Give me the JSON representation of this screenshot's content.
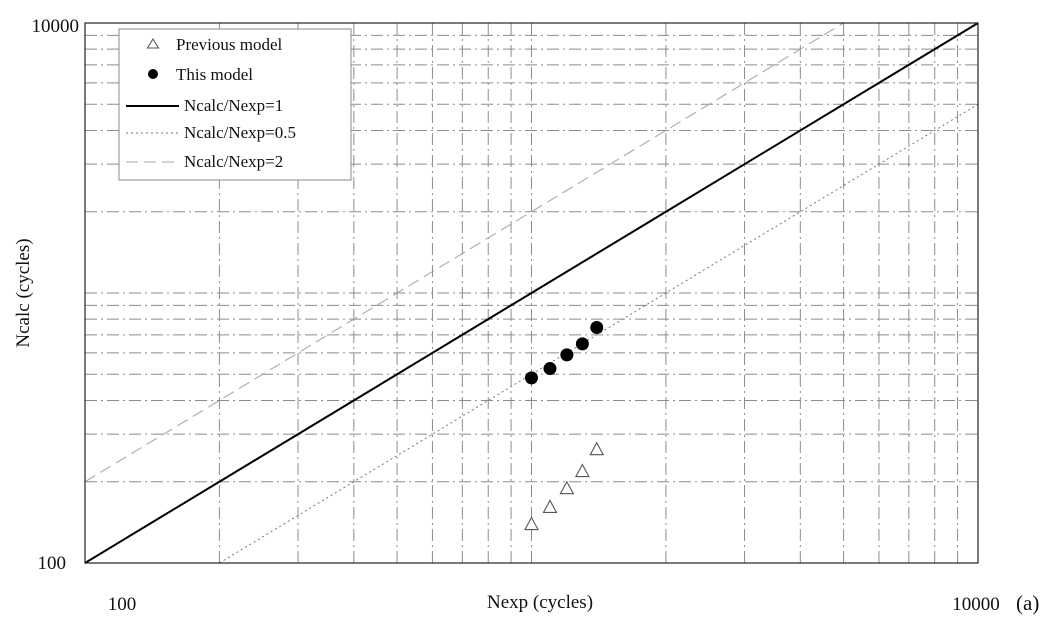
{
  "chart_data": {
    "type": "scatter",
    "x_scale": "log",
    "y_scale": "log",
    "xlim": [
      100,
      10000
    ],
    "ylim": [
      100,
      10000
    ],
    "xlabel": "Nexp (cycles)",
    "ylabel": "Ncalc (cycles)",
    "x_tick_labels": [
      "100",
      "10000"
    ],
    "y_tick_labels": [
      "100",
      "10000"
    ],
    "panel_label": "(a)",
    "grid": true,
    "legend_position": "top-left",
    "series": [
      {
        "name": "Previous model",
        "kind": "markers",
        "marker": "open-triangle",
        "color": "#555555",
        "points": [
          [
            1000,
            140
          ],
          [
            1100,
            162
          ],
          [
            1200,
            190
          ],
          [
            1300,
            220
          ],
          [
            1400,
            265
          ]
        ]
      },
      {
        "name": "This model",
        "kind": "markers",
        "marker": "filled-circle",
        "color": "#000000",
        "points": [
          [
            1000,
            485
          ],
          [
            1100,
            525
          ],
          [
            1200,
            590
          ],
          [
            1300,
            648
          ],
          [
            1400,
            745
          ]
        ]
      },
      {
        "name": "Ncalc/Nexp=1",
        "kind": "line",
        "ratio": 1,
        "style": "solid",
        "color": "#000000"
      },
      {
        "name": "Ncalc/Nexp=0.5",
        "kind": "line",
        "ratio": 0.5,
        "style": "dotted",
        "color": "#777777"
      },
      {
        "name": "Ncalc/Nexp=2",
        "kind": "line",
        "ratio": 2,
        "style": "long-dash",
        "color": "#aaaaaa"
      }
    ]
  }
}
